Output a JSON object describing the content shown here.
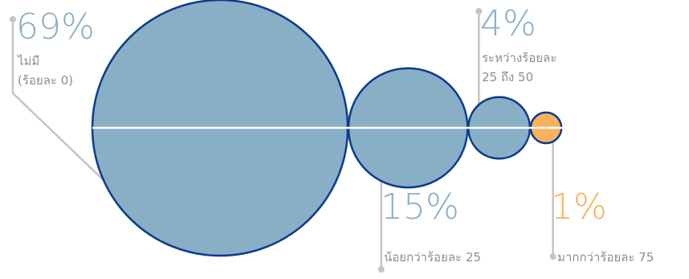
{
  "chart_data": {
    "type": "bubble",
    "categories": [
      {
        "percent_label": "69%",
        "label_lines": [
          "ไม่มี",
          "(ร้อยละ 0)"
        ],
        "value": 69,
        "color": "#88afc5"
      },
      {
        "percent_label": "15%",
        "label_lines": [
          "น้อยกว่าร้อยละ 25"
        ],
        "value": 15,
        "color": "#88afc5"
      },
      {
        "percent_label": "4%",
        "label_lines": [
          "ระหว่างร้อยละ",
          "25 ถึง 50"
        ],
        "value": 4,
        "color": "#88afc5"
      },
      {
        "percent_label": "1%",
        "label_lines": [
          "มากกว่าร้อยละ 75"
        ],
        "value": 1,
        "color": "#f8b25b"
      }
    ],
    "colors": {
      "bubble_outline": "#0d3a8f",
      "axis_line": "#ffffff",
      "leader_line": "#c4c4c4",
      "percent_text": "#88afc5",
      "highlight": "#f8b25b",
      "label_text": "#8d8d8d"
    }
  }
}
